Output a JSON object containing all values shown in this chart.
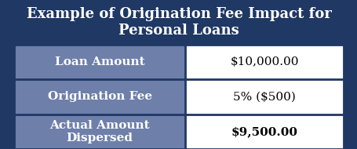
{
  "title": "Example of Origination Fee Impact for\nPersonal Loans",
  "title_bg": "#1F3864",
  "title_color": "#FFFFFF",
  "header_bg": "#6E7FAA",
  "row_bg": "#FFFFFF",
  "border_color": "#1F3864",
  "rows": [
    {
      "label": "Loan Amount",
      "value": "$10,000.00",
      "bold_value": false
    },
    {
      "label": "Origination Fee",
      "value": "5% ($500)",
      "bold_value": false
    },
    {
      "label": "Actual Amount\nDispersed",
      "value": "$9,500.00",
      "bold_value": true
    }
  ],
  "col_split": 0.52,
  "title_fontsize": 13,
  "label_fontsize": 11,
  "value_fontsize": 11
}
